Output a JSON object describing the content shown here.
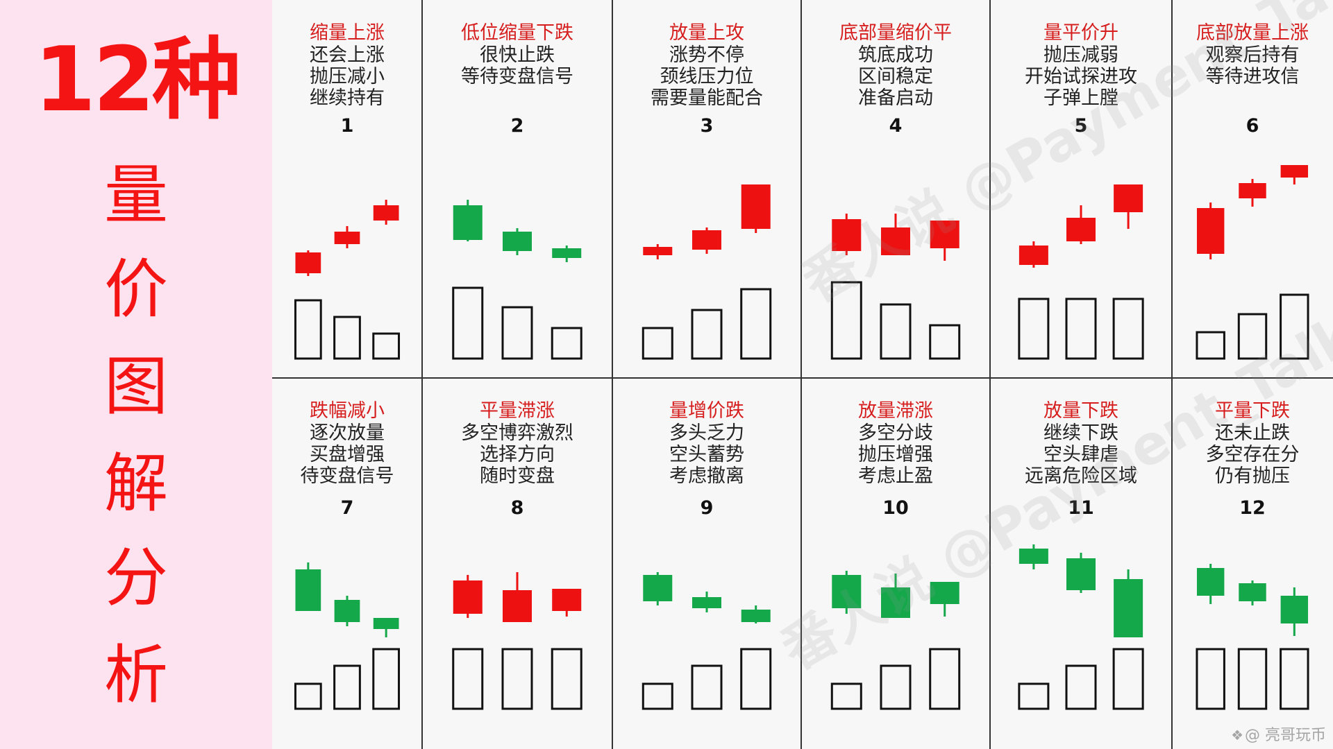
{
  "left_panel": {
    "title_number": "12种",
    "title_chars": [
      "量",
      "价",
      "图",
      "解",
      "分",
      "析"
    ]
  },
  "watermarks": {
    "main": "番人说 @Payment_Talk",
    "footer": "@ 亮哥玩币"
  },
  "colors": {
    "up": "#ee1111",
    "down": "#14a84a",
    "title_red": "#f41414",
    "grid_line": "#333333",
    "panel_bg": "#fde2f0"
  },
  "chart_data": {
    "type": "candlestick-volume",
    "panels": [
      {
        "number": "1",
        "title": "缩量上涨",
        "lines": [
          "还会上涨",
          "抛压减小",
          "继续持有"
        ],
        "candles": [
          {
            "dir": "up",
            "open": 10,
            "close": 40,
            "high": 43,
            "low": 6
          },
          {
            "dir": "up",
            "open": 52,
            "close": 70,
            "high": 78,
            "low": 46
          },
          {
            "dir": "up",
            "open": 86,
            "close": 108,
            "high": 116,
            "low": 80
          }
        ],
        "volume": [
          84,
          60,
          36
        ]
      },
      {
        "number": "2",
        "title": "低位缩量下跌",
        "lines": [
          "很快止跌",
          "等待变盘信号"
        ],
        "candles": [
          {
            "dir": "down",
            "open": 108,
            "close": 58,
            "high": 116,
            "low": 56
          },
          {
            "dir": "down",
            "open": 70,
            "close": 42,
            "high": 75,
            "low": 36
          },
          {
            "dir": "down",
            "open": 46,
            "close": 32,
            "high": 50,
            "low": 26
          }
        ],
        "volume": [
          102,
          74,
          44
        ]
      },
      {
        "number": "3",
        "title": "放量上攻",
        "lines": [
          "涨势不停",
          "颈线压力位",
          "需要量能配合"
        ],
        "candles": [
          {
            "dir": "up",
            "open": 36,
            "close": 48,
            "high": 52,
            "low": 30
          },
          {
            "dir": "up",
            "open": 44,
            "close": 72,
            "high": 76,
            "low": 38
          },
          {
            "dir": "up",
            "open": 74,
            "close": 138,
            "high": 138,
            "low": 68
          }
        ],
        "volume": [
          44,
          70,
          100
        ]
      },
      {
        "number": "4",
        "title": "底部量缩价平",
        "lines": [
          "筑底成功",
          "区间稳定",
          "准备启动"
        ],
        "candles": [
          {
            "dir": "up",
            "open": 42,
            "close": 88,
            "high": 96,
            "low": 36
          },
          {
            "dir": "up",
            "open": 36,
            "close": 76,
            "high": 96,
            "low": 36
          },
          {
            "dir": "up",
            "open": 46,
            "close": 86,
            "high": 86,
            "low": 28
          }
        ],
        "volume": [
          110,
          78,
          48
        ]
      },
      {
        "number": "5",
        "title": "量平价升",
        "lines": [
          "抛压减弱",
          "开始试探进攻",
          "子弹上膛"
        ],
        "candles": [
          {
            "dir": "up",
            "open": 22,
            "close": 50,
            "high": 56,
            "low": 18
          },
          {
            "dir": "up",
            "open": 56,
            "close": 90,
            "high": 108,
            "low": 52
          },
          {
            "dir": "up",
            "open": 98,
            "close": 138,
            "high": 138,
            "low": 74
          }
        ],
        "volume": [
          86,
          86,
          86
        ]
      },
      {
        "number": "6",
        "title": "底部放量上涨",
        "lines": [
          "观察后持有",
          "等待进攻信"
        ],
        "candles": [
          {
            "dir": "up",
            "open": 38,
            "close": 104,
            "high": 112,
            "low": 30
          },
          {
            "dir": "up",
            "open": 118,
            "close": 140,
            "high": 146,
            "low": 106
          },
          {
            "dir": "up",
            "open": 148,
            "close": 166,
            "high": 166,
            "low": 138
          }
        ],
        "volume": [
          38,
          64,
          92
        ]
      },
      {
        "number": "7",
        "title": "跌幅减小",
        "lines": [
          "逐次放量",
          "买盘增强",
          "待变盘信号"
        ],
        "candles": [
          {
            "dir": "down",
            "open": 104,
            "close": 44,
            "high": 114,
            "low": 44
          },
          {
            "dir": "down",
            "open": 60,
            "close": 28,
            "high": 66,
            "low": 22
          },
          {
            "dir": "down",
            "open": 34,
            "close": 18,
            "high": 34,
            "low": 6
          }
        ],
        "volume": [
          36,
          62,
          86
        ]
      },
      {
        "number": "8",
        "title": "平量滞涨",
        "lines": [
          "多空博弈激烈",
          "选择方向",
          "随时变盘"
        ],
        "candles": [
          {
            "dir": "up",
            "open": 40,
            "close": 88,
            "high": 96,
            "low": 34
          },
          {
            "dir": "up",
            "open": 28,
            "close": 74,
            "high": 100,
            "low": 28
          },
          {
            "dir": "up",
            "open": 44,
            "close": 76,
            "high": 76,
            "low": 36
          }
        ],
        "volume": [
          86,
          86,
          86
        ]
      },
      {
        "number": "9",
        "title": "量增价跌",
        "lines": [
          "多头乏力",
          "空头蓄势",
          "考虑撤离"
        ],
        "candles": [
          {
            "dir": "down",
            "open": 96,
            "close": 58,
            "high": 100,
            "low": 52
          },
          {
            "dir": "down",
            "open": 64,
            "close": 48,
            "high": 72,
            "low": 42
          },
          {
            "dir": "down",
            "open": 46,
            "close": 28,
            "high": 52,
            "low": 26
          }
        ],
        "volume": [
          36,
          62,
          86
        ]
      },
      {
        "number": "10",
        "title": "放量滞涨",
        "lines": [
          "多空分歧",
          "抛压增强",
          "考虑止盈"
        ],
        "candles": [
          {
            "dir": "down",
            "open": 96,
            "close": 48,
            "high": 102,
            "low": 40
          },
          {
            "dir": "down",
            "open": 78,
            "close": 34,
            "high": 98,
            "low": 34
          },
          {
            "dir": "down",
            "open": 86,
            "close": 54,
            "high": 86,
            "low": 36
          }
        ],
        "volume": [
          36,
          62,
          86
        ]
      },
      {
        "number": "11",
        "title": "放量下跌",
        "lines": [
          "继续下跌",
          "空头肆虐",
          "远离危险区域"
        ],
        "candles": [
          {
            "dir": "down",
            "open": 134,
            "close": 112,
            "high": 140,
            "low": 104
          },
          {
            "dir": "down",
            "open": 120,
            "close": 74,
            "high": 128,
            "low": 70
          },
          {
            "dir": "down",
            "open": 90,
            "close": 6,
            "high": 104,
            "low": 6
          }
        ],
        "volume": [
          36,
          62,
          86
        ]
      },
      {
        "number": "12",
        "title": "平量下跌",
        "lines": [
          "还未止跌",
          "多空存在分",
          "仍有抛压"
        ],
        "candles": [
          {
            "dir": "down",
            "open": 106,
            "close": 66,
            "high": 112,
            "low": 54
          },
          {
            "dir": "down",
            "open": 84,
            "close": 58,
            "high": 88,
            "low": 52
          },
          {
            "dir": "down",
            "open": 66,
            "close": 26,
            "high": 78,
            "low": 8
          }
        ],
        "volume": [
          86,
          86,
          86
        ]
      }
    ]
  }
}
